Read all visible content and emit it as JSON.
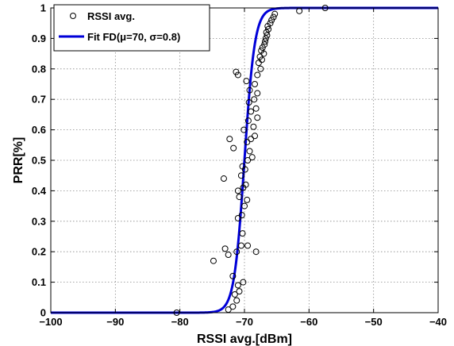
{
  "chart_data": {
    "type": "scatter",
    "xlabel": "RSSI avg.[dBm]",
    "ylabel": "PRR[%]",
    "xlim": [
      -100,
      -40
    ],
    "ylim": [
      0,
      1
    ],
    "x_ticks": [
      "−100",
      "−90",
      "−80",
      "−70",
      "−60",
      "−50",
      "−40"
    ],
    "y_ticks": [
      "0",
      "0.1",
      "0.2",
      "0.3",
      "0.4",
      "0.5",
      "0.6",
      "0.7",
      "0.8",
      "0.9",
      "1"
    ],
    "grid": true,
    "legend_position": "top-left",
    "series": [
      {
        "name": "RSSI avg.",
        "kind": "markers",
        "marker": "open-circle",
        "color": "#000000",
        "points": [
          [
            -80.5,
            0.0
          ],
          [
            -72.5,
            0.01
          ],
          [
            -71.8,
            0.02
          ],
          [
            -71.2,
            0.04
          ],
          [
            -71.5,
            0.06
          ],
          [
            -70.8,
            0.07
          ],
          [
            -71.0,
            0.09
          ],
          [
            -70.2,
            0.1
          ],
          [
            -71.8,
            0.12
          ],
          [
            -72.5,
            0.19
          ],
          [
            -74.8,
            0.17
          ],
          [
            -73.0,
            0.21
          ],
          [
            -71.2,
            0.2
          ],
          [
            -70.5,
            0.22
          ],
          [
            -69.5,
            0.22
          ],
          [
            -68.2,
            0.2
          ],
          [
            -70.3,
            0.26
          ],
          [
            -71.0,
            0.31
          ],
          [
            -70.4,
            0.32
          ],
          [
            -70.0,
            0.35
          ],
          [
            -69.6,
            0.37
          ],
          [
            -70.8,
            0.38
          ],
          [
            -71.0,
            0.4
          ],
          [
            -70.2,
            0.41
          ],
          [
            -69.8,
            0.42
          ],
          [
            -73.2,
            0.44
          ],
          [
            -70.5,
            0.45
          ],
          [
            -69.9,
            0.47
          ],
          [
            -70.3,
            0.48
          ],
          [
            -69.5,
            0.5
          ],
          [
            -68.8,
            0.51
          ],
          [
            -69.2,
            0.53
          ],
          [
            -71.7,
            0.54
          ],
          [
            -69.6,
            0.56
          ],
          [
            -69.0,
            0.57
          ],
          [
            -72.3,
            0.57
          ],
          [
            -68.4,
            0.58
          ],
          [
            -70.1,
            0.6
          ],
          [
            -68.6,
            0.61
          ],
          [
            -69.4,
            0.63
          ],
          [
            -68.0,
            0.64
          ],
          [
            -69.0,
            0.66
          ],
          [
            -68.2,
            0.67
          ],
          [
            -69.3,
            0.69
          ],
          [
            -68.5,
            0.7
          ],
          [
            -68.0,
            0.72
          ],
          [
            -69.2,
            0.73
          ],
          [
            -68.4,
            0.75
          ],
          [
            -69.7,
            0.76
          ],
          [
            -68.0,
            0.78
          ],
          [
            -71.0,
            0.78
          ],
          [
            -71.3,
            0.79
          ],
          [
            -67.5,
            0.8
          ],
          [
            -67.8,
            0.82
          ],
          [
            -67.3,
            0.83
          ],
          [
            -67.6,
            0.84
          ],
          [
            -67.0,
            0.85
          ],
          [
            -67.4,
            0.86
          ],
          [
            -67.2,
            0.87
          ],
          [
            -66.9,
            0.88
          ],
          [
            -66.8,
            0.89
          ],
          [
            -66.7,
            0.9
          ],
          [
            -66.5,
            0.91
          ],
          [
            -66.6,
            0.92
          ],
          [
            -66.3,
            0.93
          ],
          [
            -66.4,
            0.94
          ],
          [
            -66.0,
            0.95
          ],
          [
            -65.8,
            0.96
          ],
          [
            -65.5,
            0.97
          ],
          [
            -65.3,
            0.98
          ],
          [
            -61.5,
            0.99
          ],
          [
            -57.5,
            1.0
          ]
        ]
      },
      {
        "name": "Fit FD(μ=70, σ=0.8)",
        "kind": "line",
        "color": "#0000d8",
        "mu": 70,
        "sigma": 0.8
      }
    ]
  }
}
